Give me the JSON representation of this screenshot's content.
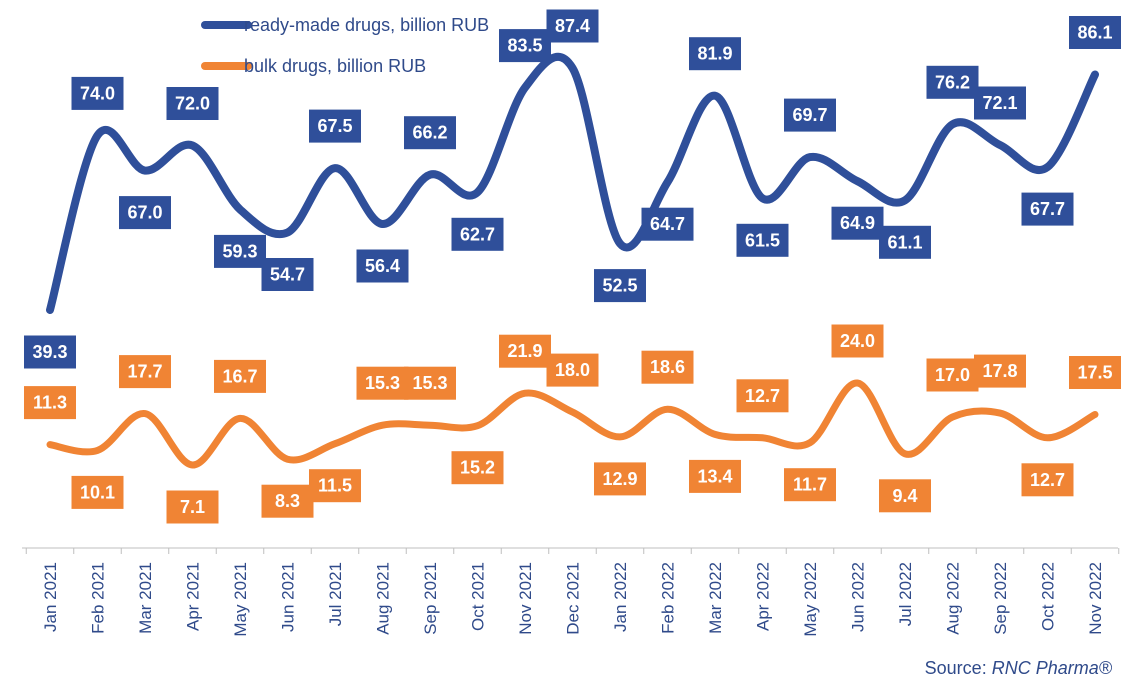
{
  "chart_data": {
    "type": "line",
    "categories": [
      "Jan 2021",
      "Feb 2021",
      "Mar 2021",
      "Apr 2021",
      "May 2021",
      "Jun 2021",
      "Jul 2021",
      "Aug 2021",
      "Sep 2021",
      "Oct 2021",
      "Nov 2021",
      "Dec 2021",
      "Jan 2022",
      "Feb 2022",
      "Mar 2022",
      "Apr 2022",
      "May 2022",
      "Jun 2022",
      "Jul 2022",
      "Aug 2022",
      "Sep 2022",
      "Oct 2022",
      "Nov 2022"
    ],
    "series": [
      {
        "name": "ready-made drugs, billion RUB",
        "color": "#2f4f9a",
        "values": [
          39.3,
          74.0,
          67.0,
          72.0,
          59.3,
          54.7,
          67.5,
          56.4,
          66.2,
          62.7,
          83.5,
          87.4,
          52.5,
          64.7,
          81.9,
          61.5,
          69.7,
          64.9,
          61.1,
          76.2,
          72.1,
          67.7,
          86.1
        ],
        "labels": [
          "39.3",
          "74.0",
          "67.0",
          "72.0",
          "59.3",
          "54.7",
          "67.5",
          "56.4",
          "66.2",
          "62.7",
          "83.5",
          "87.4",
          "52.5",
          "64.7",
          "81.9",
          "61.5",
          "69.7",
          "64.9",
          "61.1",
          "76.2",
          "72.1",
          "67.7",
          "86.1"
        ]
      },
      {
        "name": "bulk drugs, billion RUB",
        "color": "#f08434",
        "values": [
          11.3,
          10.1,
          17.7,
          7.1,
          16.7,
          8.3,
          11.5,
          15.3,
          15.3,
          15.2,
          21.9,
          18.0,
          12.9,
          18.6,
          13.4,
          12.7,
          11.7,
          24.0,
          9.4,
          17.0,
          17.8,
          12.7,
          17.5
        ],
        "labels": [
          "11.3",
          "10.1",
          "17.7",
          "7.1",
          "16.7",
          "8.3",
          "11.5",
          "15.3",
          "15.3",
          "15.2",
          "21.9",
          "18.0",
          "12.9",
          "18.6",
          "13.4",
          "12.7",
          "11.7",
          "24.0",
          "9.4",
          "17.0",
          "17.8",
          "12.7",
          "17.5"
        ]
      }
    ],
    "legend": "top-left",
    "grid": false
  },
  "source": {
    "prefix": "Source: ",
    "brand": "RNC Pharma®"
  }
}
